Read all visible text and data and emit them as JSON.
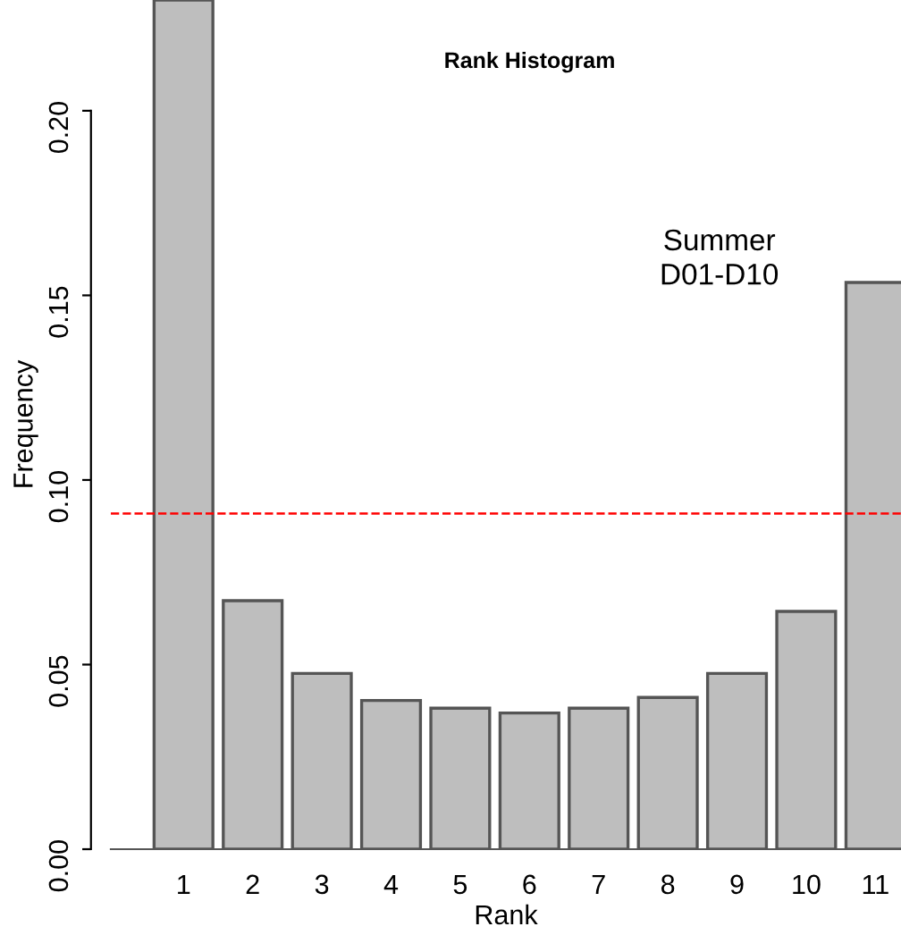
{
  "chart_data": {
    "type": "bar",
    "title": "Rank Histogram",
    "xlabel": "Rank",
    "ylabel": "Frequency",
    "annotations": [
      "Summer\nD01-D10"
    ],
    "categories": [
      "1",
      "2",
      "3",
      "4",
      "5",
      "6",
      "7",
      "8",
      "9",
      "10",
      "11"
    ],
    "values": [
      0.23,
      0.0673,
      0.0476,
      0.0403,
      0.0382,
      0.0369,
      0.0382,
      0.0411,
      0.0476,
      0.0644,
      0.1535
    ],
    "color": "#bebebe",
    "ylim": [
      0,
      0.23
    ],
    "yticks": [
      {
        "value": 0,
        "label": "0.00"
      },
      {
        "value": 0.05,
        "label": "0.05"
      },
      {
        "value": 0.1,
        "label": "0.10"
      },
      {
        "value": 0.15,
        "label": "0.15"
      },
      {
        "value": 0.2,
        "label": "0.20"
      }
    ],
    "ref_lines": [
      {
        "axis": "y",
        "value": 0.0909,
        "color": "#ff0000",
        "line_style": "dashed"
      }
    ],
    "grid": false,
    "legend": false
  }
}
